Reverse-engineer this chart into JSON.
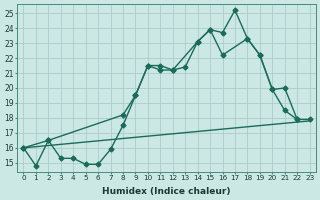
{
  "xlabel": "Humidex (Indice chaleur)",
  "xlim": [
    -0.5,
    23.5
  ],
  "ylim": [
    14.4,
    25.6
  ],
  "yticks": [
    15,
    16,
    17,
    18,
    19,
    20,
    21,
    22,
    23,
    24,
    25
  ],
  "xticks": [
    0,
    1,
    2,
    3,
    4,
    5,
    6,
    7,
    8,
    9,
    10,
    11,
    12,
    13,
    14,
    15,
    16,
    17,
    18,
    19,
    20,
    21,
    22,
    23
  ],
  "bg_color": "#cce8e5",
  "grid_color": "#aaccca",
  "line_color": "#1a6b5a",
  "line1_x": [
    0,
    1,
    2,
    3,
    4,
    5,
    6,
    7,
    8,
    9,
    10,
    11,
    12,
    13,
    14,
    15,
    16,
    17,
    18,
    19,
    20,
    21,
    22
  ],
  "line1_y": [
    16.0,
    14.8,
    16.5,
    15.3,
    15.3,
    14.9,
    14.9,
    15.9,
    17.5,
    19.5,
    21.5,
    21.2,
    21.2,
    21.4,
    23.1,
    23.9,
    23.7,
    25.2,
    23.3,
    22.2,
    19.9,
    18.5,
    17.9
  ],
  "line2_x": [
    0,
    2,
    8,
    9,
    10,
    11,
    12,
    14,
    15,
    16,
    18,
    19,
    20,
    21,
    22,
    23
  ],
  "line2_y": [
    16.0,
    16.5,
    18.2,
    19.5,
    21.5,
    21.5,
    21.2,
    23.1,
    23.9,
    22.2,
    23.3,
    22.2,
    19.9,
    20.0,
    17.9,
    17.9
  ],
  "line3_x": [
    0,
    23
  ],
  "line3_y": [
    16.0,
    17.8
  ],
  "marker": "D",
  "markersize": 2.5,
  "linewidth": 1.0
}
